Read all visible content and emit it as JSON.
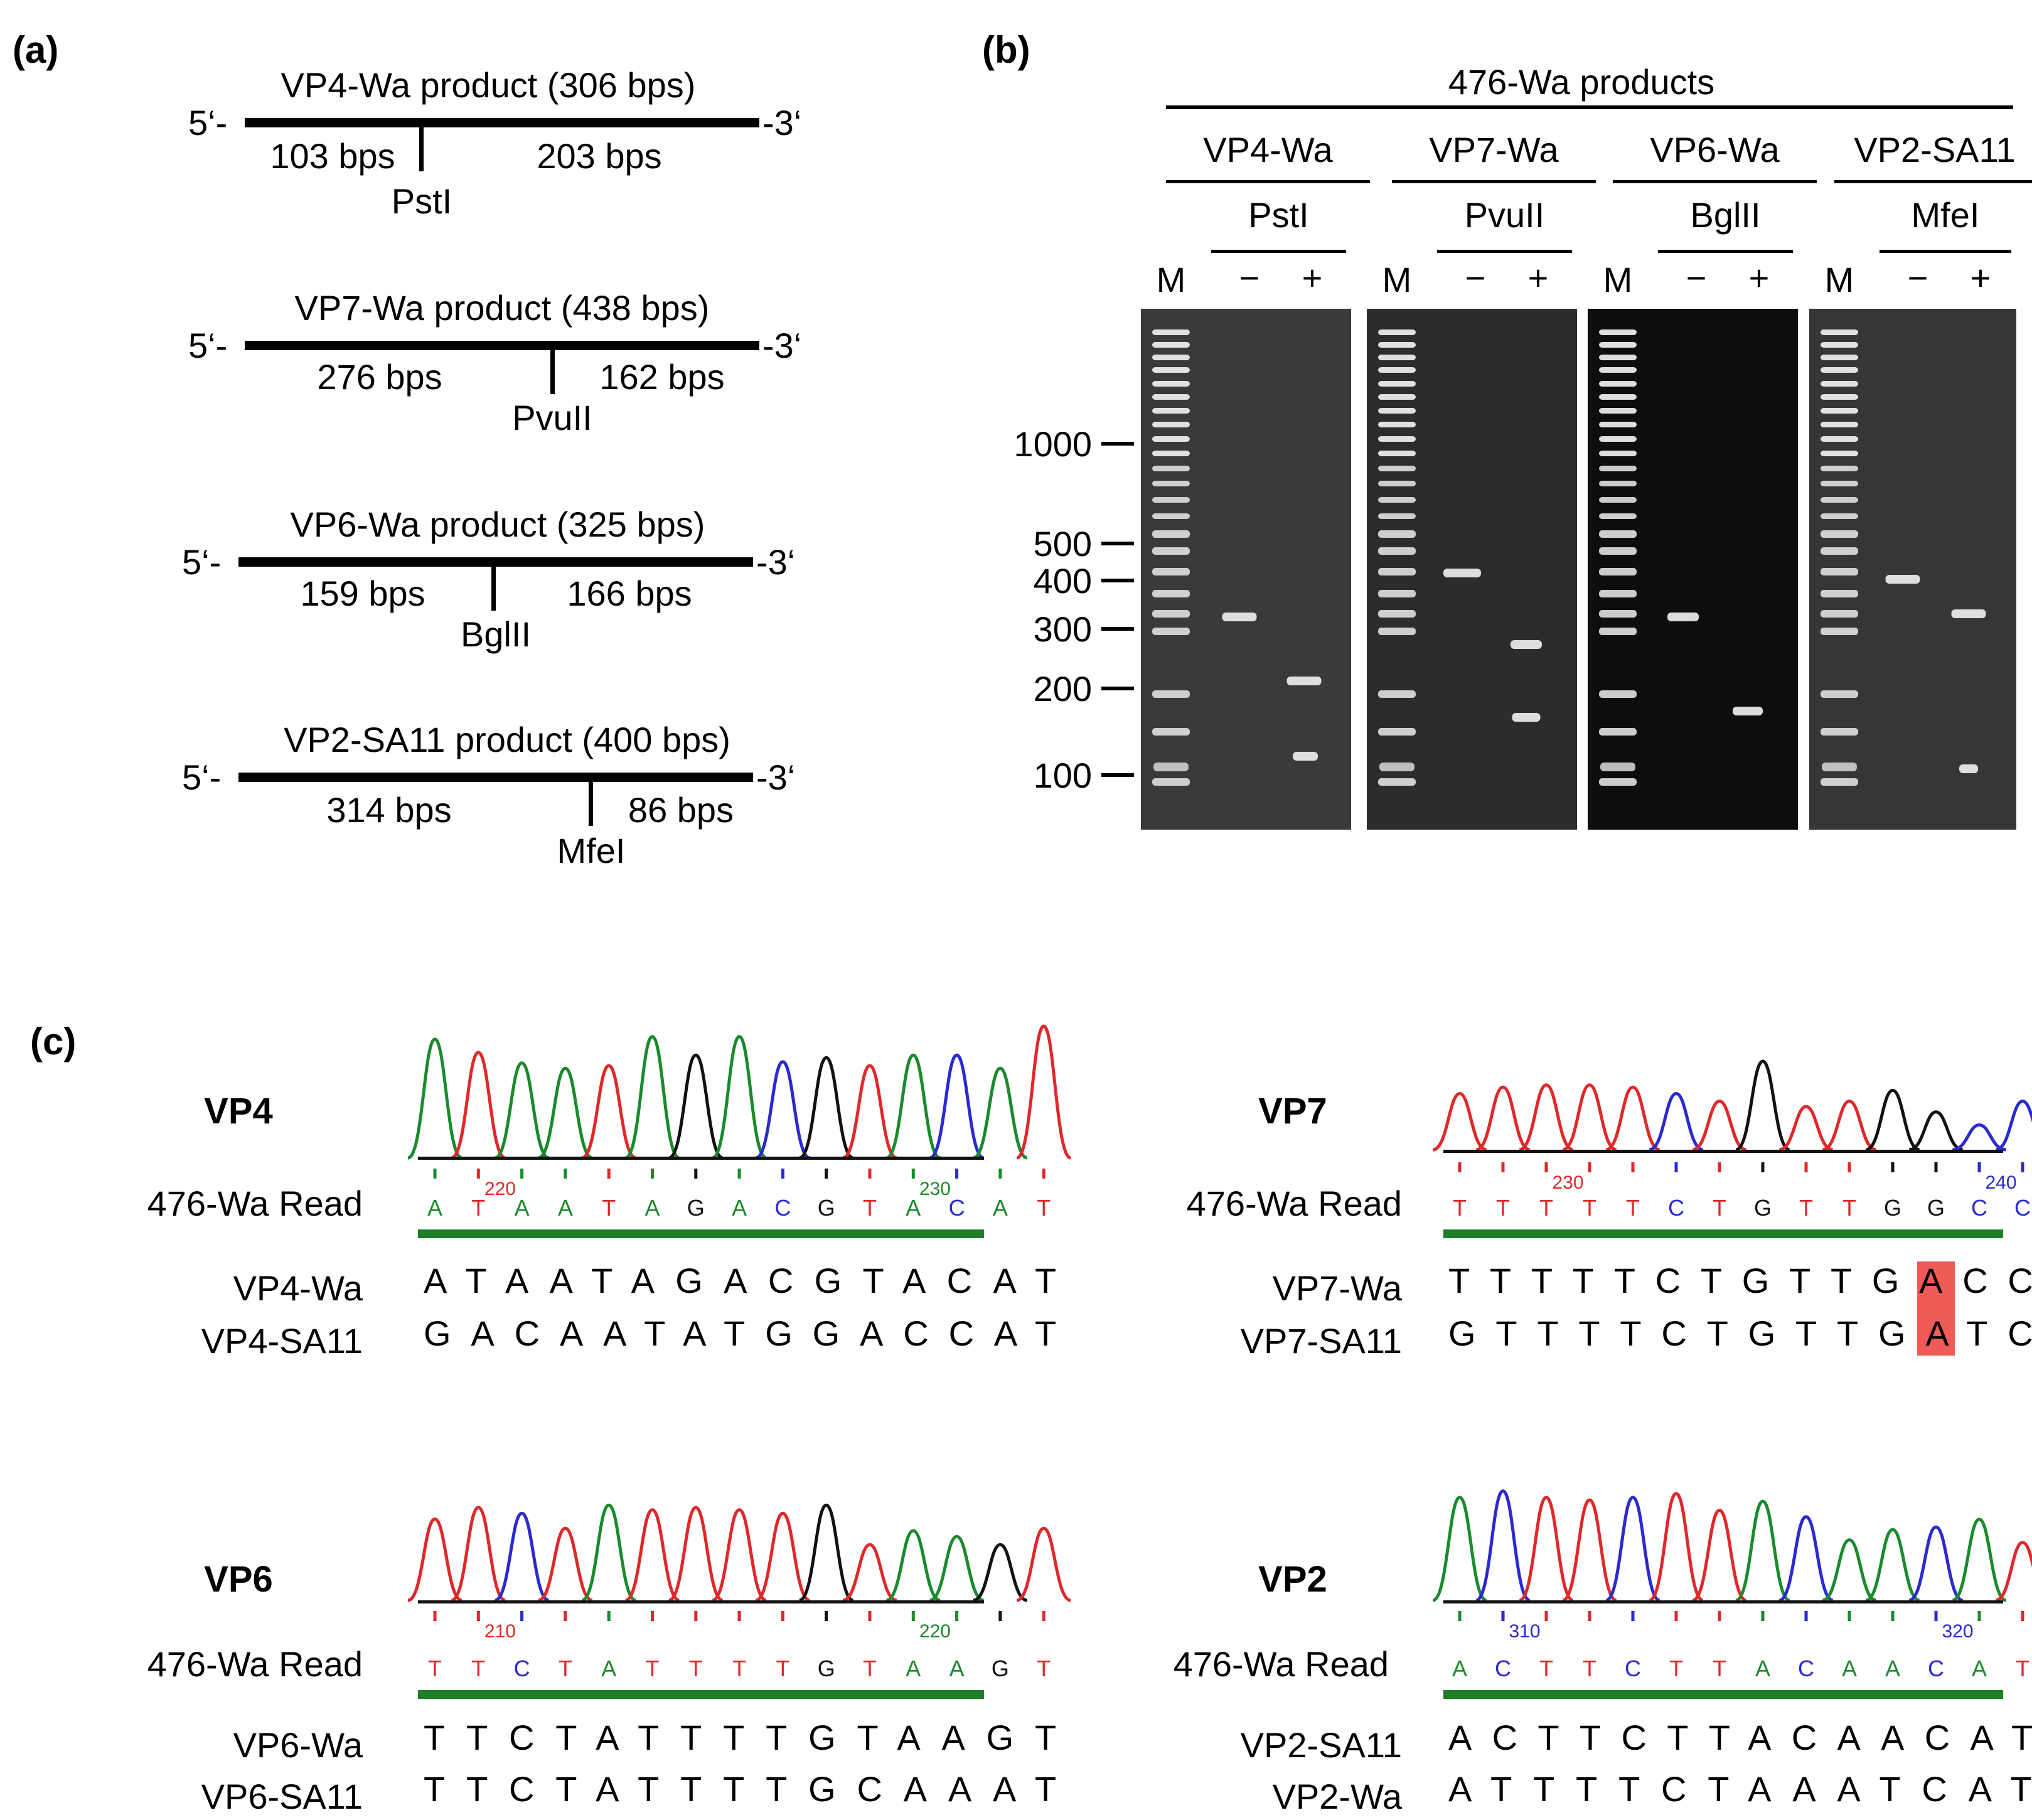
{
  "panel_a": {
    "label": "(a)",
    "end5": "5‘-",
    "end3": "-3‘",
    "products": [
      {
        "title": "VP4-Wa product (306 bps)",
        "left": "103 bps",
        "right": "203 bps",
        "enzyme": "PstI"
      },
      {
        "title": "VP7-Wa product (438 bps)",
        "left": "276 bps",
        "right": "162 bps",
        "enzyme": "PvuII"
      },
      {
        "title": "VP6-Wa product (325 bps)",
        "left": "159 bps",
        "right": "166 bps",
        "enzyme": "BglII"
      },
      {
        "title": "VP2-SA11 product (400 bps)",
        "left": "314 bps",
        "right": "86 bps",
        "enzyme": "MfeI"
      }
    ]
  },
  "panel_b": {
    "label": "(b)",
    "header": "476-Wa products",
    "ladder_label": "M",
    "minus": "−",
    "plus": "+",
    "size_markers": [
      "1000",
      "500",
      "400",
      "300",
      "200",
      "100"
    ],
    "gels": [
      {
        "gene": "VP4-Wa",
        "enzyme": "PstI"
      },
      {
        "gene": "VP7-Wa",
        "enzyme": "PvuII"
      },
      {
        "gene": "VP6-Wa",
        "enzyme": "BglII"
      },
      {
        "gene": "VP2-SA11",
        "enzyme": "MfeI"
      }
    ]
  },
  "panel_c": {
    "label": "(c)",
    "read_label": "476-Wa Read",
    "base_colors": {
      "A": "#1a8a2e",
      "C": "#2a2ad0",
      "G": "#111111",
      "T": "#e0282a"
    },
    "highlight_color": "#f05a57",
    "trace_bar_color": "#1e7f28",
    "panels": [
      {
        "gene": "VP4",
        "read": "ATAATAGACGTACAT",
        "pos_labels": [
          {
            "index": 2,
            "text": "220"
          },
          {
            "index": 12,
            "text": "230"
          }
        ],
        "rows": [
          {
            "name": "VP4-Wa",
            "seq": "ATAATAGACGTACAT"
          },
          {
            "name": "VP4-SA11",
            "seq": "GACAATATGGACCAT"
          }
        ]
      },
      {
        "gene": "VP7",
        "read": "TTTTTCTGTTGGCCC",
        "pos_labels": [
          {
            "index": 3,
            "text": "230"
          },
          {
            "index": 13,
            "text": "240"
          }
        ],
        "highlight_index": 11,
        "rows": [
          {
            "name": "VP7-Wa",
            "seq": "TTTTTCTGTTGACCC"
          },
          {
            "name": "VP7-SA11",
            "seq": "GTTTTCTGTTGATCC"
          }
        ]
      },
      {
        "gene": "VP6",
        "read": "TTCTATTTTGTAAGT",
        "pos_labels": [
          {
            "index": 2,
            "text": "210"
          },
          {
            "index": 12,
            "text": "220"
          }
        ],
        "rows": [
          {
            "name": "VP6-Wa",
            "seq": "TTCTATTTTGTAAGT"
          },
          {
            "name": "VP6-SA11",
            "seq": "TTCTATTTTGCAAAT"
          }
        ]
      },
      {
        "gene": "VP2",
        "read": "ACTTCTTACAACATC",
        "pos_labels": [
          {
            "index": 2,
            "text": "310"
          },
          {
            "index": 12,
            "text": "320"
          }
        ],
        "rows": [
          {
            "name": "VP2-SA11",
            "seq": "ACTTCTTACAACATC"
          },
          {
            "name": "VP2-Wa",
            "seq": "ATTTTCTAAATCATC"
          }
        ]
      }
    ]
  }
}
